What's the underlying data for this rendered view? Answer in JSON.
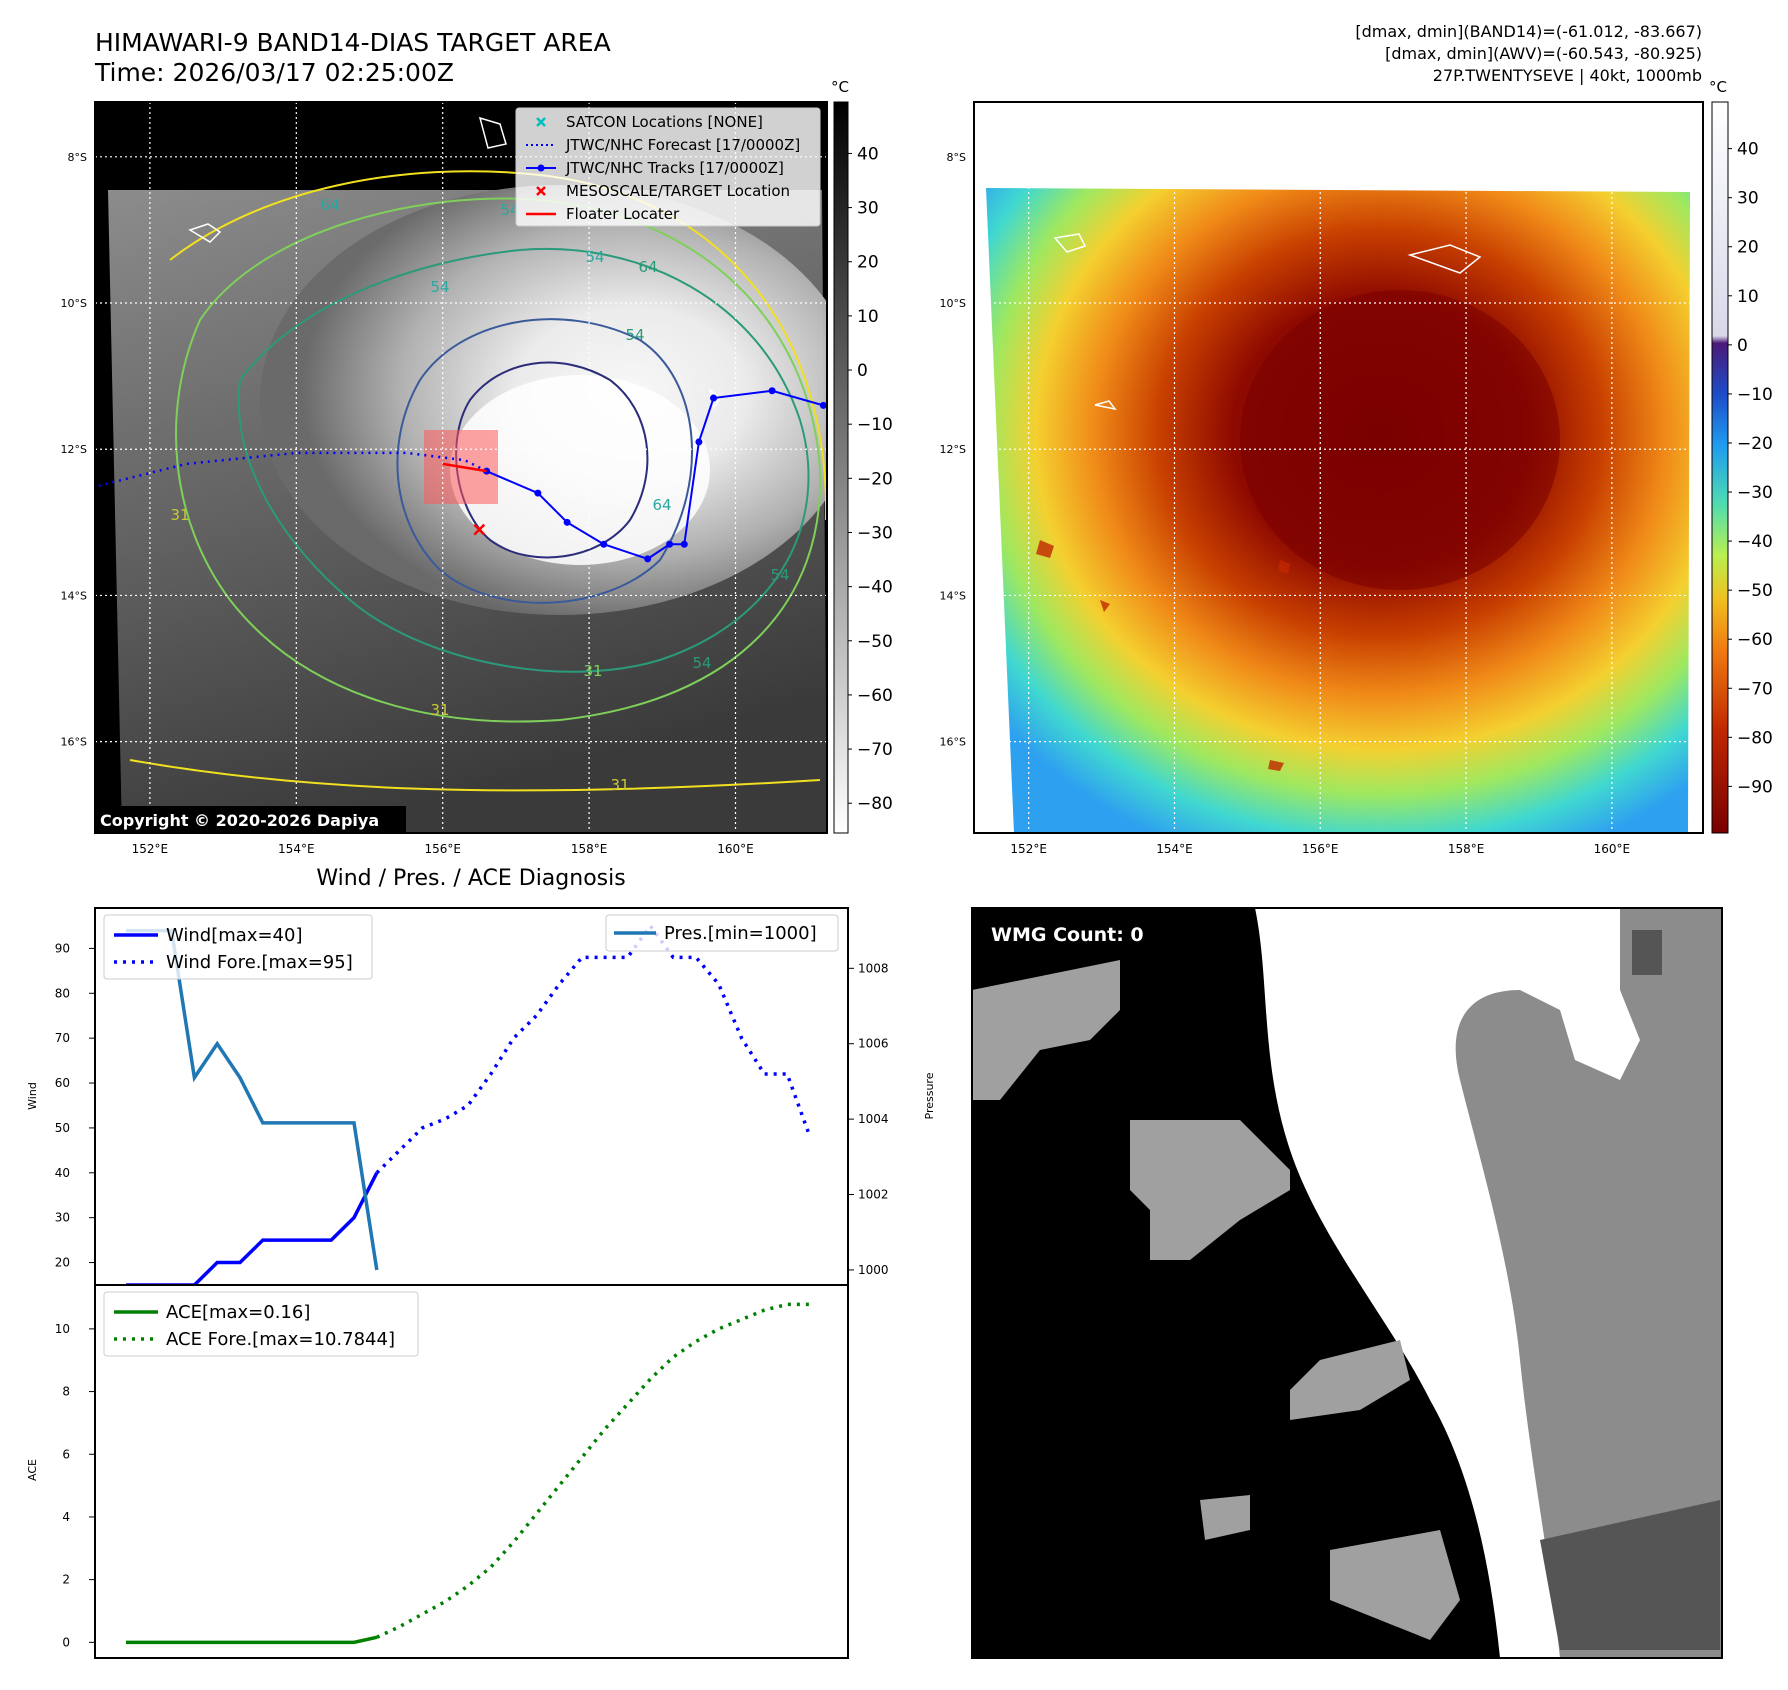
{
  "header": {
    "title": "HIMAWARI-9 BAND14-DIAS TARGET AREA",
    "time": "Time: 2026/03/17 02:25:00Z",
    "info_line1": "[dmax, dmin](BAND14)=(-61.012, -83.667)",
    "info_line2": "[dmax, dmin](AWV)=(-60.543, -80.925)",
    "info_line3": "27P.TWENTYSEVE | 40kt, 1000mb"
  },
  "map": {
    "lat_labels": [
      "8°S",
      "10°S",
      "12°S",
      "14°S",
      "16°S"
    ],
    "lat_values": [
      -8,
      -10,
      -12,
      -14,
      -16
    ],
    "lon_labels": [
      "152°E",
      "154°E",
      "156°E",
      "158°E",
      "160°E"
    ],
    "lon_values": [
      152,
      154,
      156,
      158,
      160
    ],
    "copyright": "Copyright © 2020-2026 Dapiya",
    "contour_labels": [
      "64",
      "54",
      "54",
      "64",
      "54",
      "54",
      "64",
      "31",
      "54",
      "31",
      "31",
      "54",
      "31"
    ],
    "legend": [
      {
        "label": "SATCON Locations [NONE]",
        "color": "#00bfbf",
        "marker": "x"
      },
      {
        "label": "JTWC/NHC Forecast [17/0000Z]",
        "color": "#0000ff",
        "marker": "dotted"
      },
      {
        "label": "JTWC/NHC Tracks [17/0000Z]",
        "color": "#0000ff",
        "marker": "dot-line"
      },
      {
        "label": "MESOSCALE/TARGET Location",
        "color": "#ff0000",
        "marker": "x"
      },
      {
        "label": "Floater Locater",
        "color": "#ff0000",
        "marker": "line"
      }
    ],
    "track_points": [
      [
        156.6,
        -12.3
      ],
      [
        157.3,
        -12.6
      ],
      [
        157.7,
        -13.0
      ],
      [
        158.2,
        -13.3
      ],
      [
        158.8,
        -13.5
      ],
      [
        159.1,
        -13.3
      ],
      [
        159.3,
        -13.3
      ],
      [
        159.5,
        -11.9
      ],
      [
        159.7,
        -11.3
      ],
      [
        160.5,
        -11.2
      ],
      [
        161.2,
        -11.4
      ]
    ],
    "forecast_points": [
      [
        151.3,
        -12.5
      ],
      [
        152.5,
        -12.2
      ],
      [
        154.0,
        -12.05
      ],
      [
        155.5,
        -12.05
      ],
      [
        156.3,
        -12.15
      ],
      [
        156.6,
        -12.3
      ]
    ],
    "target": [
      156.5,
      -13.1
    ],
    "floater": [
      [
        156.0,
        -12.2
      ],
      [
        156.6,
        -12.3
      ]
    ],
    "colorbar_unit": "°C",
    "colorbar_gray_ticks": [
      "40",
      "30",
      "20",
      "10",
      "0",
      "−10",
      "−20",
      "−30",
      "−40",
      "−50",
      "−60",
      "−70",
      "−80"
    ],
    "colorbar_color_ticks": [
      "40",
      "30",
      "20",
      "10",
      "0",
      "−10",
      "−20",
      "−30",
      "−40",
      "−50",
      "−60",
      "−70",
      "−80",
      "−90"
    ]
  },
  "wmg": {
    "label": "WMG Count: 0"
  },
  "diagnosis_title": "Wind / Pres. / ACE Diagnosis",
  "chart_data": [
    {
      "type": "line",
      "title": "Wind / Pres. / ACE Diagnosis",
      "ylabel": "Wind",
      "ylabel_right": "Pressure",
      "x": [
        0,
        1,
        2,
        3,
        4,
        5,
        6,
        7,
        8,
        9,
        10,
        11,
        12,
        13,
        14,
        15,
        16,
        17,
        18,
        19,
        20,
        21,
        22,
        23,
        24,
        25,
        26,
        27,
        28,
        29,
        30
      ],
      "ylim": [
        15,
        99
      ],
      "yticks": [
        20,
        30,
        40,
        50,
        60,
        70,
        80,
        90
      ],
      "ylim_right": [
        999.6,
        1009.6
      ],
      "yticks_right": [
        1000,
        1002,
        1004,
        1006,
        1008
      ],
      "series": [
        {
          "name": "Wind[max=40]",
          "axis": "left",
          "style": "solid",
          "color": "#0000ff",
          "x": [
            0,
            3,
            4,
            5,
            6,
            7,
            8,
            9,
            10,
            11
          ],
          "values": [
            15,
            15,
            20,
            20,
            25,
            25,
            25,
            25,
            30,
            40
          ]
        },
        {
          "name": "Wind Fore.[max=95]",
          "axis": "left",
          "style": "dotted",
          "color": "#0000ff",
          "x": [
            11,
            12,
            13,
            14,
            15,
            16,
            17,
            18,
            19,
            20,
            21,
            22,
            23,
            24,
            25,
            26,
            27,
            28,
            29,
            30
          ],
          "values": [
            40,
            45,
            50,
            52,
            55,
            62,
            70,
            75,
            82,
            88,
            88,
            88,
            95,
            88,
            88,
            82,
            70,
            62,
            62,
            48
          ]
        },
        {
          "name": "Pres.[min=1000]",
          "axis": "right",
          "style": "solid",
          "color": "#1f77b4",
          "x": [
            0,
            2,
            3,
            4,
            5,
            6,
            7,
            8,
            9,
            10,
            11
          ],
          "values": [
            1009,
            1009,
            1005.1,
            1006,
            1005.1,
            1003.9,
            1003.9,
            1003.9,
            1003.9,
            1003.9,
            1000
          ]
        }
      ]
    },
    {
      "type": "line",
      "ylabel": "ACE",
      "x": [
        0,
        1,
        2,
        3,
        4,
        5,
        6,
        7,
        8,
        9,
        10,
        11,
        12,
        13,
        14,
        15,
        16,
        17,
        18,
        19,
        20,
        21,
        22,
        23,
        24,
        25,
        26,
        27,
        28,
        29,
        30
      ],
      "ylim": [
        -0.5,
        11.4
      ],
      "yticks": [
        0,
        2,
        4,
        6,
        8,
        10
      ],
      "series": [
        {
          "name": "ACE[max=0.16]",
          "style": "solid",
          "color": "#008000",
          "x": [
            0,
            10,
            11
          ],
          "values": [
            0,
            0,
            0.16
          ]
        },
        {
          "name": "ACE Fore.[max=10.7844]",
          "style": "dotted",
          "color": "#008000",
          "x": [
            11,
            12,
            13,
            14,
            15,
            16,
            17,
            18,
            19,
            20,
            21,
            22,
            23,
            24,
            25,
            26,
            27,
            28,
            29,
            30
          ],
          "values": [
            0.16,
            0.5,
            0.9,
            1.3,
            1.8,
            2.4,
            3.2,
            4.1,
            5.0,
            5.9,
            6.8,
            7.6,
            8.4,
            9.1,
            9.6,
            10.0,
            10.3,
            10.6,
            10.78,
            10.78
          ]
        }
      ]
    }
  ]
}
